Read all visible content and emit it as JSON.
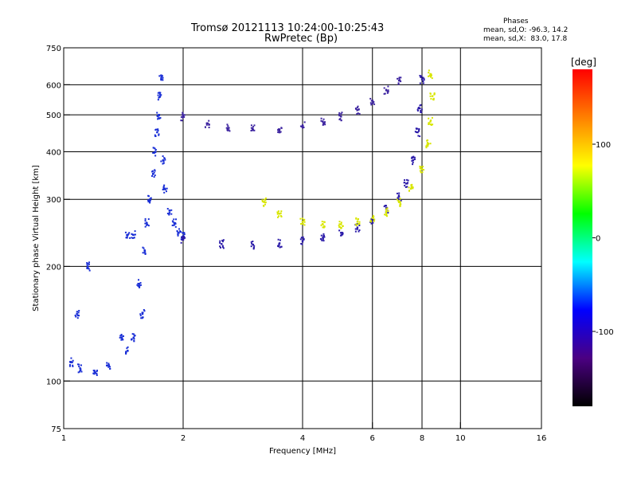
{
  "header": {
    "title_line1": "Tromsø 20121113 10:24:00-10:25:43",
    "title_line2": "RwPretec (Bp)",
    "phases_label": "Phases",
    "phases_o": "mean, sd,O: -96.3, 14.2",
    "phases_x": "mean, sd,X:  83.0, 17.8"
  },
  "chart_data": {
    "type": "scatter",
    "xlabel": "Frequency [MHz]",
    "ylabel": "Stationary phase Virtual Height [km]",
    "x_scale": "log",
    "y_scale": "log",
    "xlim": [
      1,
      16
    ],
    "ylim": [
      75,
      750
    ],
    "x_ticks": [
      1,
      2,
      4,
      6,
      8,
      10,
      16
    ],
    "y_ticks": [
      75,
      100,
      200,
      300,
      400,
      500,
      600,
      750
    ],
    "x_grid": [
      2,
      4,
      6,
      8,
      10
    ],
    "y_grid": [
      100,
      200,
      300,
      400,
      500,
      600
    ],
    "grid": true,
    "colorbar": {
      "label": "[deg]",
      "range": [
        -180,
        180
      ],
      "ticks": [
        100,
        0,
        -100
      ],
      "colors": [
        "#000000",
        "#4b0082",
        "#0000ff",
        "#00ffff",
        "#00ff00",
        "#ffff00",
        "#ff8000",
        "#ff0000"
      ]
    },
    "series": [
      {
        "color": "#1a2fd6",
        "points": [
          [
            1.6,
            220
          ],
          [
            1.62,
            260
          ],
          [
            1.65,
            300
          ],
          [
            1.68,
            350
          ],
          [
            1.7,
            400
          ],
          [
            1.72,
            450
          ],
          [
            1.74,
            500
          ],
          [
            1.75,
            560
          ],
          [
            1.76,
            620
          ],
          [
            1.78,
            380
          ],
          [
            1.8,
            320
          ],
          [
            1.85,
            280
          ],
          [
            1.9,
            260
          ],
          [
            1.95,
            245
          ],
          [
            2.0,
            240
          ],
          [
            1.55,
            180
          ],
          [
            1.58,
            150
          ],
          [
            1.5,
            130
          ],
          [
            1.45,
            120
          ],
          [
            1.4,
            130
          ],
          [
            1.3,
            110
          ],
          [
            1.2,
            105
          ],
          [
            1.1,
            108
          ],
          [
            1.05,
            112
          ],
          [
            1.08,
            150
          ],
          [
            1.15,
            200
          ],
          [
            1.45,
            242
          ],
          [
            1.5,
            242
          ]
        ]
      },
      {
        "color": "#2a1aa8",
        "points": [
          [
            2.0,
            235
          ],
          [
            2.5,
            229
          ],
          [
            3.0,
            228
          ],
          [
            3.5,
            230
          ],
          [
            4.0,
            233
          ],
          [
            4.5,
            238
          ],
          [
            5.0,
            245
          ],
          [
            5.5,
            253
          ],
          [
            6.0,
            265
          ],
          [
            6.5,
            282
          ],
          [
            7.0,
            305
          ],
          [
            7.3,
            330
          ],
          [
            7.6,
            380
          ],
          [
            7.8,
            450
          ],
          [
            7.9,
            520
          ],
          [
            8.0,
            620
          ]
        ]
      },
      {
        "color": "#d8e600",
        "points": [
          [
            3.2,
            295
          ],
          [
            3.5,
            275
          ],
          [
            4.0,
            262
          ],
          [
            4.5,
            258
          ],
          [
            5.0,
            258
          ],
          [
            5.5,
            262
          ],
          [
            6.0,
            268
          ],
          [
            6.5,
            278
          ],
          [
            7.0,
            295
          ],
          [
            7.5,
            320
          ],
          [
            8.0,
            360
          ],
          [
            8.3,
            420
          ],
          [
            8.4,
            480
          ],
          [
            8.5,
            560
          ],
          [
            8.4,
            640
          ]
        ]
      },
      {
        "color": "#3d24a0",
        "points": [
          [
            2.0,
            495
          ],
          [
            2.3,
            475
          ],
          [
            2.6,
            462
          ],
          [
            3.0,
            458
          ],
          [
            3.5,
            458
          ],
          [
            4.0,
            468
          ],
          [
            4.5,
            480
          ],
          [
            5.0,
            495
          ],
          [
            5.5,
            515
          ],
          [
            6.0,
            545
          ],
          [
            6.5,
            580
          ],
          [
            7.0,
            615
          ]
        ]
      }
    ]
  }
}
